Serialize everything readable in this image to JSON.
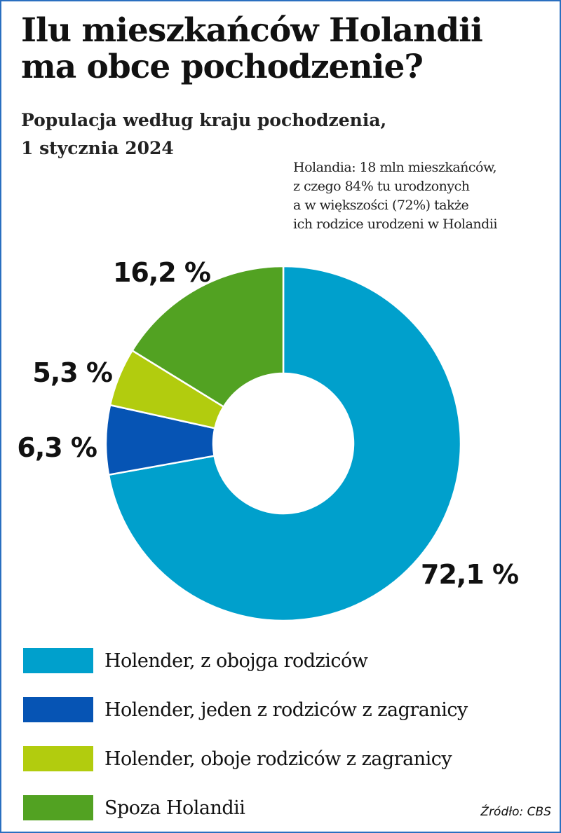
{
  "title_lines": [
    "Ilu mieszkańców Holandii",
    "ma obce pochodzenie?"
  ],
  "subtitle_lines": [
    "Populacja według kraju pochodzenia,",
    "1 stycznia 2024"
  ],
  "note_lines": [
    "Holandia: 18 mln mieszkańców,",
    "z czego 84% tu urodzonych",
    "a w większości (72%) także",
    "ich rodzice urodzeni w Holandii"
  ],
  "source": "Źródło: CBS",
  "chart_data": {
    "type": "pie",
    "donut": true,
    "title": "Ilu mieszkańców Holandii ma obce pochodzenie?",
    "legend_position": "bottom",
    "slices": [
      {
        "name": "Holender, z obojga rodziców",
        "value": 72.1,
        "label": "72,1 %",
        "color": "#00a0cc"
      },
      {
        "name": "Holender, jeden z rodziców z zagranicy",
        "value": 6.3,
        "label": "6,3 %",
        "color": "#0654b4"
      },
      {
        "name": "Holender, oboje rodziców z zagranicy",
        "value": 5.3,
        "label": "5,3 %",
        "color": "#b2cc0e"
      },
      {
        "name": "Spoza Holandii",
        "value": 16.2,
        "label": "16,2 %",
        "color": "#52a222"
      }
    ]
  }
}
